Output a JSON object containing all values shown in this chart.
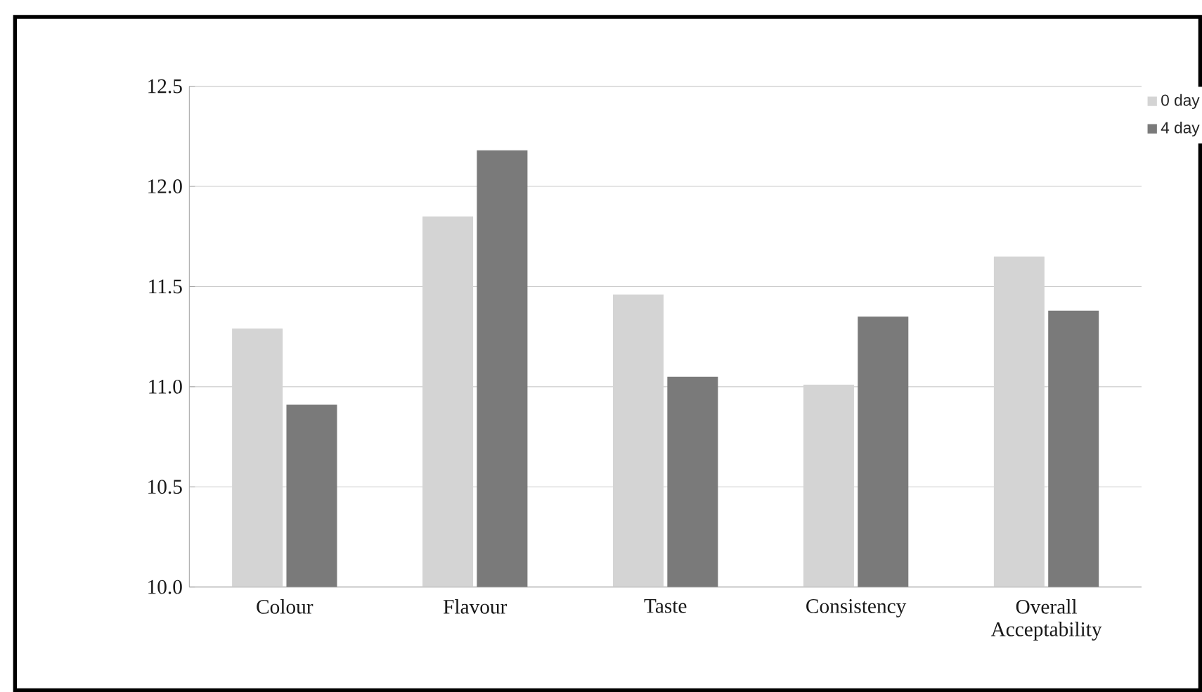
{
  "chart_data": {
    "type": "bar",
    "categories": [
      "Colour",
      "Flavour",
      "Taste",
      "Consistency",
      "Overall Acceptability"
    ],
    "series": [
      {
        "name": "0 day",
        "color": "#d4d4d4",
        "values": [
          11.29,
          11.85,
          11.46,
          11.01,
          11.65
        ]
      },
      {
        "name": "4 day",
        "color": "#7a7a7a",
        "values": [
          10.91,
          12.18,
          11.05,
          11.35,
          11.38
        ]
      }
    ],
    "ylim": [
      10.0,
      12.5
    ],
    "yticks": [
      {
        "value": 10.0,
        "label": "10.0"
      },
      {
        "value": 10.5,
        "label": "10.5"
      },
      {
        "value": 11.0,
        "label": "11.0"
      },
      {
        "value": 11.5,
        "label": "11.5"
      },
      {
        "value": 12.0,
        "label": "12.0"
      },
      {
        "value": 12.5,
        "label": "12.5"
      }
    ],
    "grid": "y",
    "legend": "top right"
  }
}
